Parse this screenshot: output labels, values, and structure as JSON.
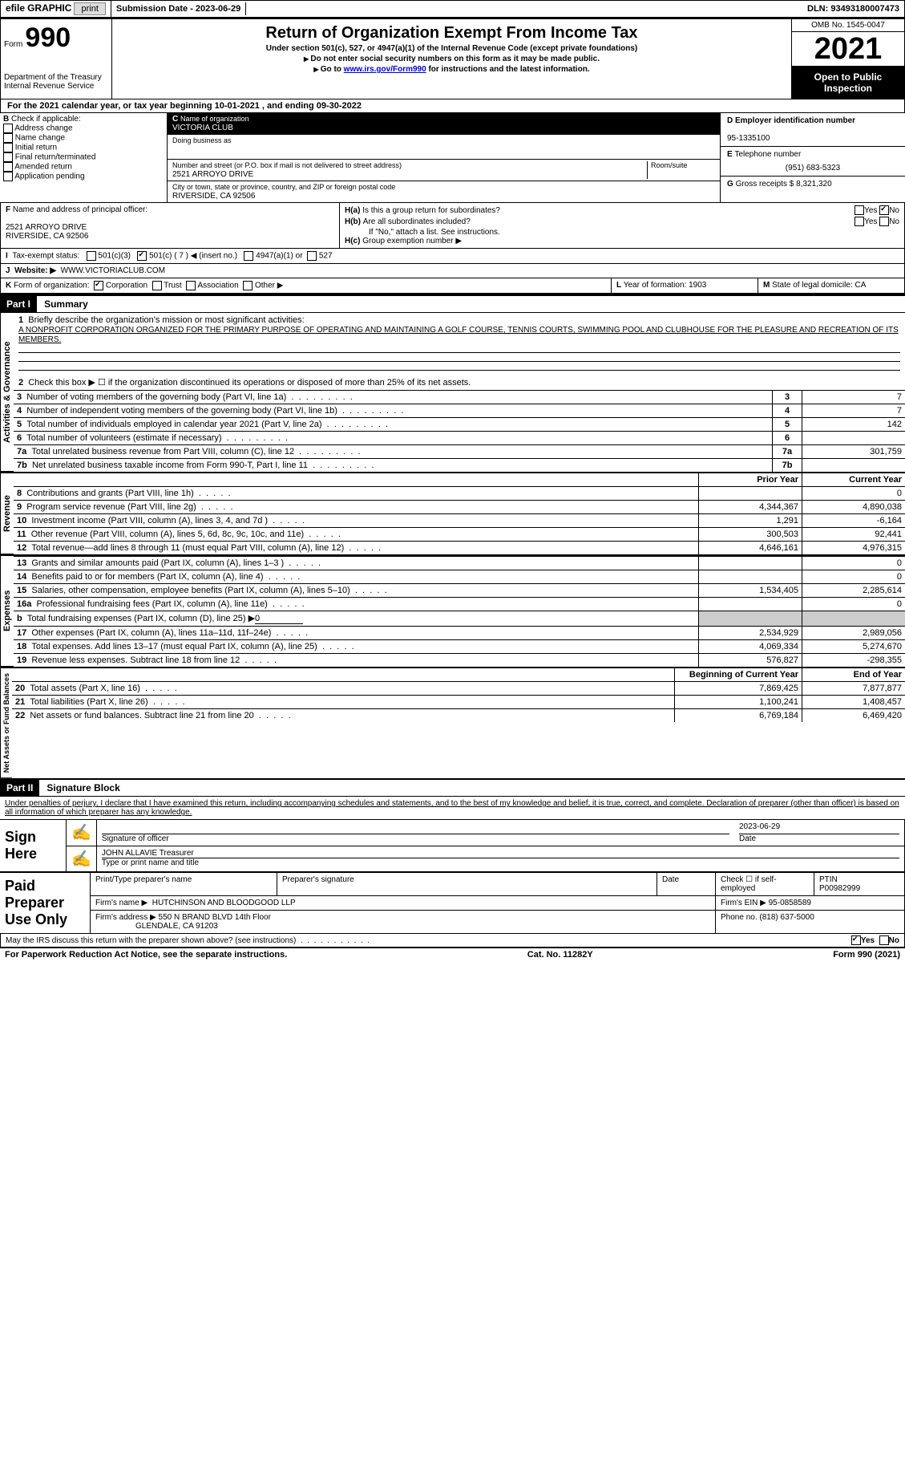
{
  "header": {
    "efile_prefix": "efile",
    "efile_label": "GRAPHIC",
    "print_btn": "print",
    "submission_label": "Submission Date -",
    "submission_date": "2023-06-29",
    "dln_label": "DLN:",
    "dln": "93493180007473"
  },
  "form_head": {
    "form_word": "Form",
    "form_number": "990",
    "title": "Return of Organization Exempt From Income Tax",
    "subtitle": "Under section 501(c), 527, or 4947(a)(1) of the Internal Revenue Code (except private foundations)",
    "note1": "Do not enter social security numbers on this form as it may be made public.",
    "note2_pre": "Go to ",
    "note2_link": "www.irs.gov/Form990",
    "note2_post": " for instructions and the latest information.",
    "dept": "Department of the Treasury",
    "irs": "Internal Revenue Service",
    "omb": "OMB No. 1545-0047",
    "year": "2021",
    "open_public": "Open to Public Inspection"
  },
  "period": {
    "text": "For the 2021 calendar year, or tax year beginning 10-01-2021     , and ending 09-30-2022"
  },
  "boxB": {
    "label": "Check if applicable:",
    "items": [
      "Address change",
      "Name change",
      "Initial return",
      "Final return/terminated",
      "Amended return",
      "Application pending"
    ]
  },
  "boxC": {
    "name_label": "Name of organization",
    "name": "VICTORIA CLUB",
    "dba_label": "Doing business as",
    "addr_label": "Number and street (or P.O. box if mail is not delivered to street address)",
    "room_label": "Room/suite",
    "addr": "2521 ARROYO DRIVE",
    "city_label": "City or town, state or province, country, and ZIP or foreign postal code",
    "city": "RIVERSIDE, CA  92506"
  },
  "boxD": {
    "label": "Employer identification number",
    "value": "95-1335100"
  },
  "boxE": {
    "label": "Telephone number",
    "value": "(951) 683-5323"
  },
  "boxG": {
    "label": "Gross receipts $",
    "value": "8,321,320"
  },
  "boxF": {
    "label": "Name and address of principal officer:",
    "addr1": "2521 ARROYO DRIVE",
    "addr2": "RIVERSIDE, CA  92506"
  },
  "boxH": {
    "a": "Is this a group return for subordinates?",
    "b": "Are all subordinates included?",
    "note": "If \"No,\" attach a list. See instructions.",
    "c": "Group exemption number ▶",
    "yes": "Yes",
    "no": "No"
  },
  "boxI": {
    "label": "Tax-exempt status:",
    "opt1": "501(c)(3)",
    "opt2": "501(c) ( 7 ) ◀ (insert no.)",
    "opt3": "4947(a)(1) or",
    "opt4": "527"
  },
  "boxJ": {
    "label": "Website: ▶",
    "value": "WWW.VICTORIACLUB.COM"
  },
  "boxK": {
    "label": "Form of organization:",
    "opts": [
      "Corporation",
      "Trust",
      "Association",
      "Other ▶"
    ]
  },
  "boxL": {
    "label": "Year of formation:",
    "value": "1903"
  },
  "boxM": {
    "label": "State of legal domicile:",
    "value": "CA"
  },
  "part1": {
    "hdr": "Part I",
    "title": "Summary",
    "q1_label": "Briefly describe the organization's mission or most significant activities:",
    "q1_text": "A NONPROFIT CORPORATION ORGANIZED FOR THE PRIMARY PURPOSE OF OPERATING AND MAINTAINING A GOLF COURSE, TENNIS COURTS, SWIMMING POOL AND CLUBHOUSE FOR THE PLEASURE AND RECREATION OF ITS MEMBERS.",
    "q2": "Check this box ▶ ☐  if the organization discontinued its operations or disposed of more than 25% of its net assets.",
    "lines": [
      {
        "n": "3",
        "txt": "Number of voting members of the governing body (Part VI, line 1a)",
        "val": "7"
      },
      {
        "n": "4",
        "txt": "Number of independent voting members of the governing body (Part VI, line 1b)",
        "val": "7"
      },
      {
        "n": "5",
        "txt": "Total number of individuals employed in calendar year 2021 (Part V, line 2a)",
        "val": "142"
      },
      {
        "n": "6",
        "txt": "Total number of volunteers (estimate if necessary)",
        "val": ""
      },
      {
        "n": "7a",
        "txt": "Total unrelated business revenue from Part VIII, column (C), line 12",
        "val": "301,759"
      },
      {
        "n": "7b",
        "txt": "Net unrelated business taxable income from Form 990-T, Part I, line 11",
        "val": ""
      }
    ],
    "prior_hdr": "Prior Year",
    "current_hdr": "Current Year",
    "rev_label": "Revenue",
    "exp_label": "Expenses",
    "net_label": "Net Assets or Fund Balances",
    "gov_label": "Activities & Governance",
    "revenue": [
      {
        "n": "8",
        "txt": "Contributions and grants (Part VIII, line 1h)",
        "prior": "",
        "cur": "0"
      },
      {
        "n": "9",
        "txt": "Program service revenue (Part VIII, line 2g)",
        "prior": "4,344,367",
        "cur": "4,890,038"
      },
      {
        "n": "10",
        "txt": "Investment income (Part VIII, column (A), lines 3, 4, and 7d )",
        "prior": "1,291",
        "cur": "-6,164"
      },
      {
        "n": "11",
        "txt": "Other revenue (Part VIII, column (A), lines 5, 6d, 8c, 9c, 10c, and 11e)",
        "prior": "300,503",
        "cur": "92,441"
      },
      {
        "n": "12",
        "txt": "Total revenue—add lines 8 through 11 (must equal Part VIII, column (A), line 12)",
        "prior": "4,646,161",
        "cur": "4,976,315"
      }
    ],
    "expenses": [
      {
        "n": "13",
        "txt": "Grants and similar amounts paid (Part IX, column (A), lines 1–3 )",
        "prior": "",
        "cur": "0"
      },
      {
        "n": "14",
        "txt": "Benefits paid to or for members (Part IX, column (A), line 4)",
        "prior": "",
        "cur": "0"
      },
      {
        "n": "15",
        "txt": "Salaries, other compensation, employee benefits (Part IX, column (A), lines 5–10)",
        "prior": "1,534,405",
        "cur": "2,285,614"
      },
      {
        "n": "16a",
        "txt": "Professional fundraising fees (Part IX, column (A), line 11e)",
        "prior": "",
        "cur": "0"
      },
      {
        "n": "b",
        "txt": "Total fundraising expenses (Part IX, column (D), line 25) ▶",
        "val": "0",
        "gray": true
      },
      {
        "n": "17",
        "txt": "Other expenses (Part IX, column (A), lines 11a–11d, 11f–24e)",
        "prior": "2,534,929",
        "cur": "2,989,056"
      },
      {
        "n": "18",
        "txt": "Total expenses. Add lines 13–17 (must equal Part IX, column (A), line 25)",
        "prior": "4,069,334",
        "cur": "5,274,670"
      },
      {
        "n": "19",
        "txt": "Revenue less expenses. Subtract line 18 from line 12",
        "prior": "576,827",
        "cur": "-298,355"
      }
    ],
    "boy_hdr": "Beginning of Current Year",
    "eoy_hdr": "End of Year",
    "netassets": [
      {
        "n": "20",
        "txt": "Total assets (Part X, line 16)",
        "prior": "7,869,425",
        "cur": "7,877,877"
      },
      {
        "n": "21",
        "txt": "Total liabilities (Part X, line 26)",
        "prior": "1,100,241",
        "cur": "1,408,457"
      },
      {
        "n": "22",
        "txt": "Net assets or fund balances. Subtract line 21 from line 20",
        "prior": "6,769,184",
        "cur": "6,469,420"
      }
    ]
  },
  "part2": {
    "hdr": "Part II",
    "title": "Signature Block",
    "perjury": "Under penalties of perjury, I declare that I have examined this return, including accompanying schedules and statements, and to the best of my knowledge and belief, it is true, correct, and complete. Declaration of preparer (other than officer) is based on all information of which preparer has any knowledge.",
    "sign_here": "Sign Here",
    "sig_officer": "Signature of officer",
    "sig_date": "2023-06-29",
    "date_lbl": "Date",
    "officer_name": "JOHN ALLAVIE  Treasurer",
    "officer_lbl": "Type or print name and title",
    "paid": "Paid Preparer Use Only",
    "prep_name_lbl": "Print/Type preparer's name",
    "prep_sig_lbl": "Preparer's signature",
    "check_se": "Check ☐ if self-employed",
    "ptin_lbl": "PTIN",
    "ptin": "P00982999",
    "firm_name_lbl": "Firm's name      ▶",
    "firm_name": "HUTCHINSON AND BLOODGOOD LLP",
    "firm_ein_lbl": "Firm's EIN ▶",
    "firm_ein": "95-0858589",
    "firm_addr_lbl": "Firm's address ▶",
    "firm_addr1": "550 N BRAND BLVD 14th Floor",
    "firm_addr2": "GLENDALE, CA  91203",
    "phone_lbl": "Phone no.",
    "phone": "(818) 637-5000",
    "discuss": "May the IRS discuss this return with the preparer shown above? (see instructions)",
    "yes": "Yes",
    "no": "No"
  },
  "footer": {
    "pra": "For Paperwork Reduction Act Notice, see the separate instructions.",
    "cat": "Cat. No. 11282Y",
    "form": "Form 990 (2021)"
  }
}
